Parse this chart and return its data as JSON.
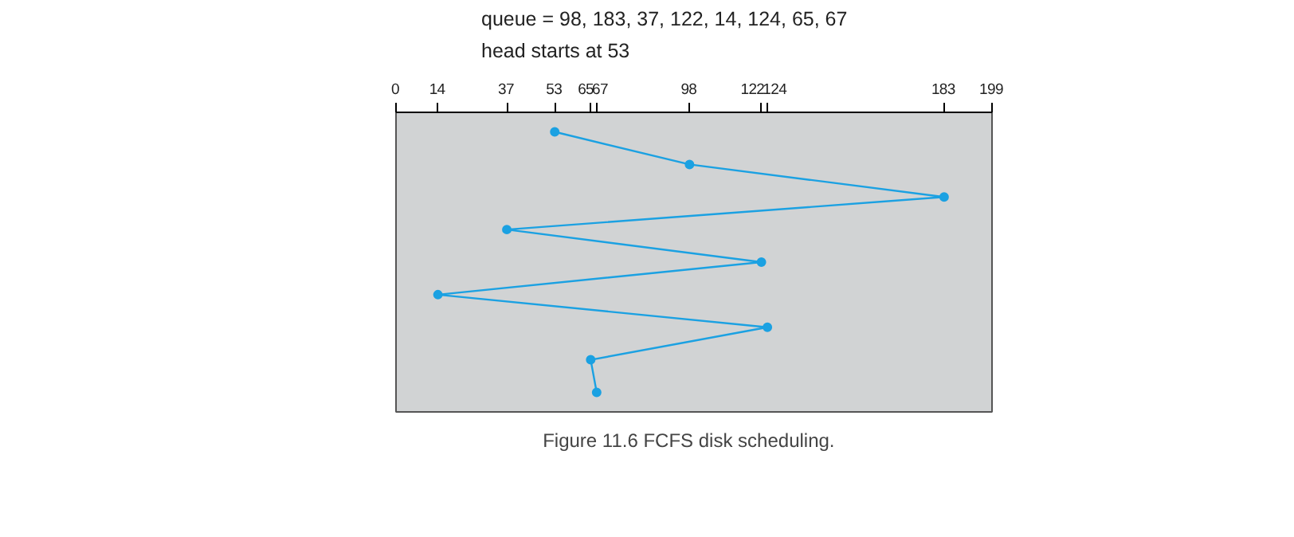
{
  "chart_data": {
    "type": "line",
    "orientation": "horizontal",
    "title": "queue = 98, 183, 37, 122, 14, 124, 65, 67",
    "subtitle": "head starts at 53",
    "categories": [
      null,
      null,
      null,
      null,
      null,
      null,
      null,
      null,
      null
    ],
    "series": [
      {
        "color": "#1ba1e2",
        "values": [
          53,
          98,
          183,
          37,
          122,
          14,
          124,
          65,
          67
        ]
      }
    ],
    "xlim": [
      0,
      199
    ],
    "xticks": [
      0,
      14,
      37,
      53,
      65,
      67,
      98,
      122,
      124,
      183,
      199
    ],
    "marker": "circle",
    "grid": false,
    "annotations": [
      "Figure 11.6   FCFS disk scheduling."
    ]
  }
}
